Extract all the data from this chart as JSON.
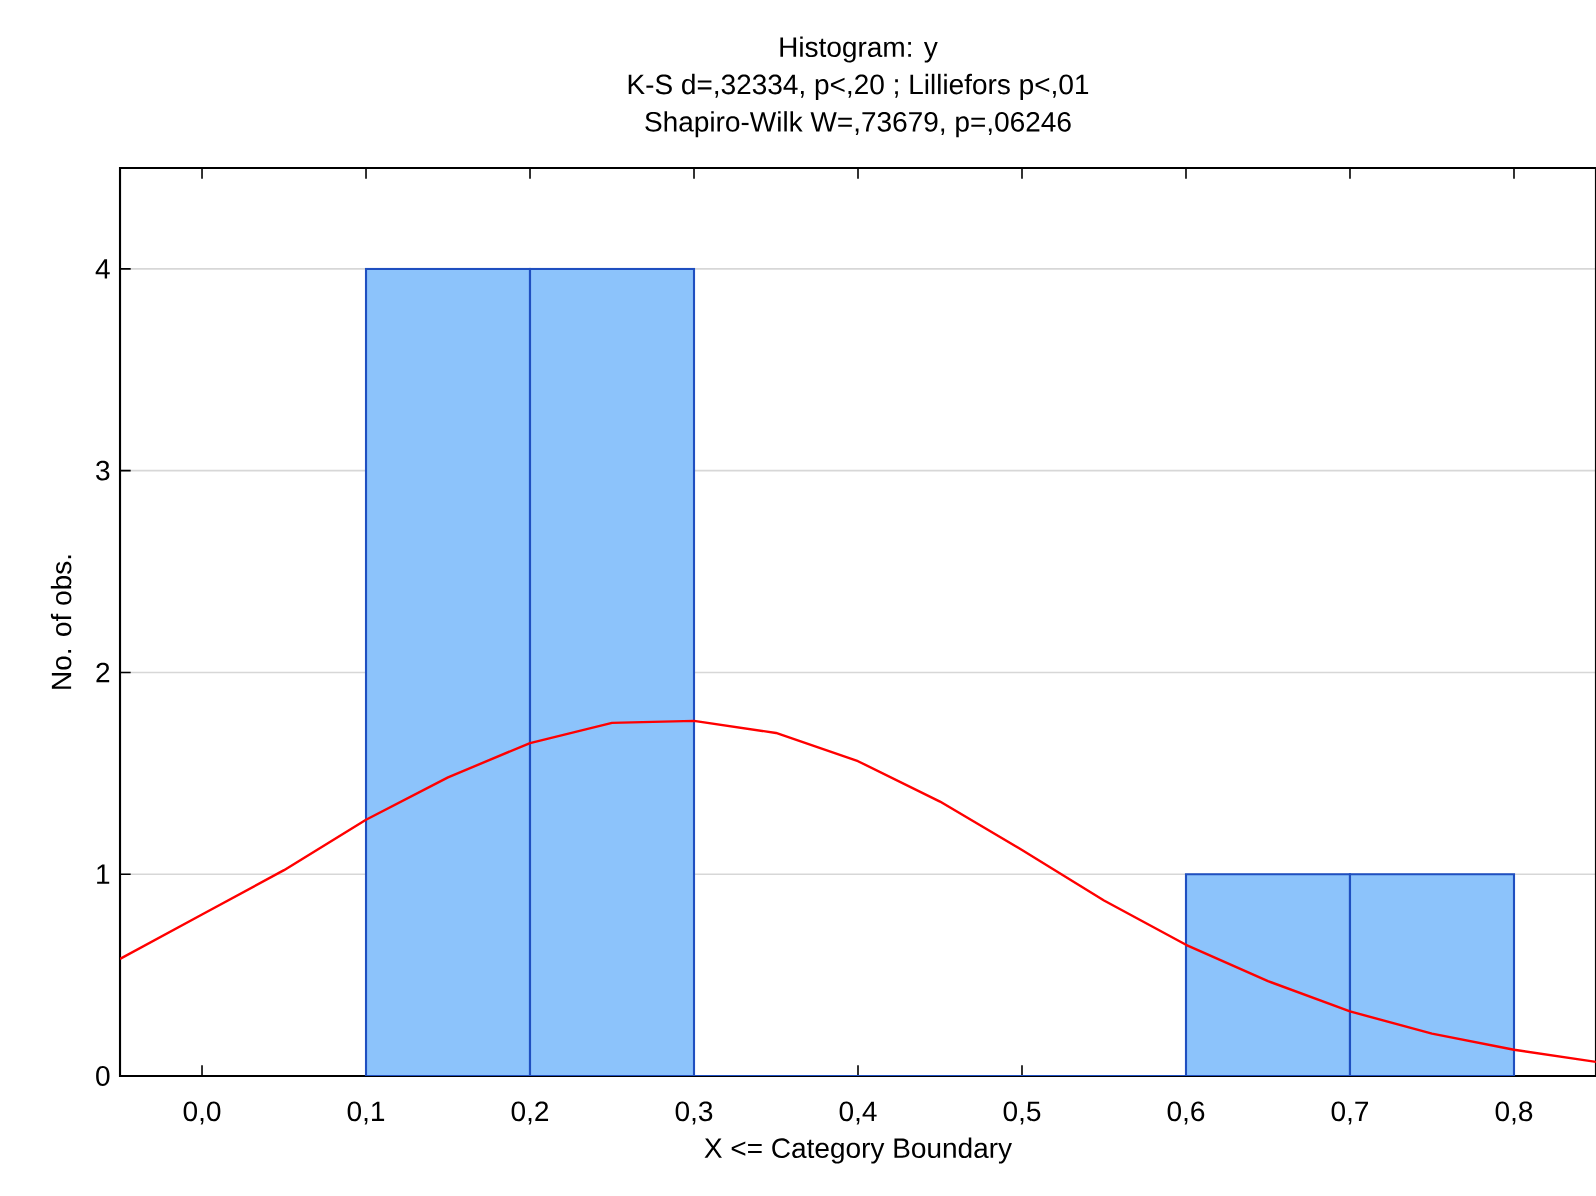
{
  "chart_data": {
    "type": "histogram",
    "title": "Histogram: y",
    "subtitle": "K-S d=,32334, p<,20 ; Lilliefors p<,01",
    "annotations": [
      "Shapiro-Wilk W=,73679, p=,06246"
    ],
    "xlabel": "X <= Category Boundary",
    "ylabel": "No. of obs.",
    "xlim": [
      -0.05,
      0.85
    ],
    "ylim": [
      0,
      4.5
    ],
    "xticks": [
      {
        "value": 0,
        "label": "0,0"
      },
      {
        "value": 0.1,
        "label": "0,1"
      },
      {
        "value": 0.2,
        "label": "0,2"
      },
      {
        "value": 0.3,
        "label": "0,3"
      },
      {
        "value": 0.4,
        "label": "0,4"
      },
      {
        "value": 0.5,
        "label": "0,5"
      },
      {
        "value": 0.6,
        "label": "0,6"
      },
      {
        "value": 0.7,
        "label": "0,7"
      },
      {
        "value": 0.8,
        "label": "0,8"
      }
    ],
    "yticks": [
      0,
      1,
      2,
      3,
      4
    ],
    "grid": "y",
    "series": [
      {
        "color": "#8cc3fb",
        "bins": [
          0.1,
          0.2,
          0.3,
          0.4,
          0.5,
          0.6,
          0.7,
          0.8
        ],
        "values": [
          4,
          4,
          0,
          0,
          0,
          1,
          1
        ]
      },
      {
        "type": "line",
        "color": "#ff0000",
        "x": [
          -0.05,
          0.0,
          0.05,
          0.1,
          0.15,
          0.2,
          0.25,
          0.3,
          0.35,
          0.4,
          0.45,
          0.5,
          0.55,
          0.6,
          0.65,
          0.7,
          0.75,
          0.8,
          0.85
        ],
        "values": [
          0.58,
          0.8,
          1.02,
          1.27,
          1.48,
          1.65,
          1.75,
          1.76,
          1.7,
          1.56,
          1.36,
          1.12,
          0.87,
          0.65,
          0.47,
          0.32,
          0.21,
          0.13,
          0.07
        ]
      }
    ]
  }
}
